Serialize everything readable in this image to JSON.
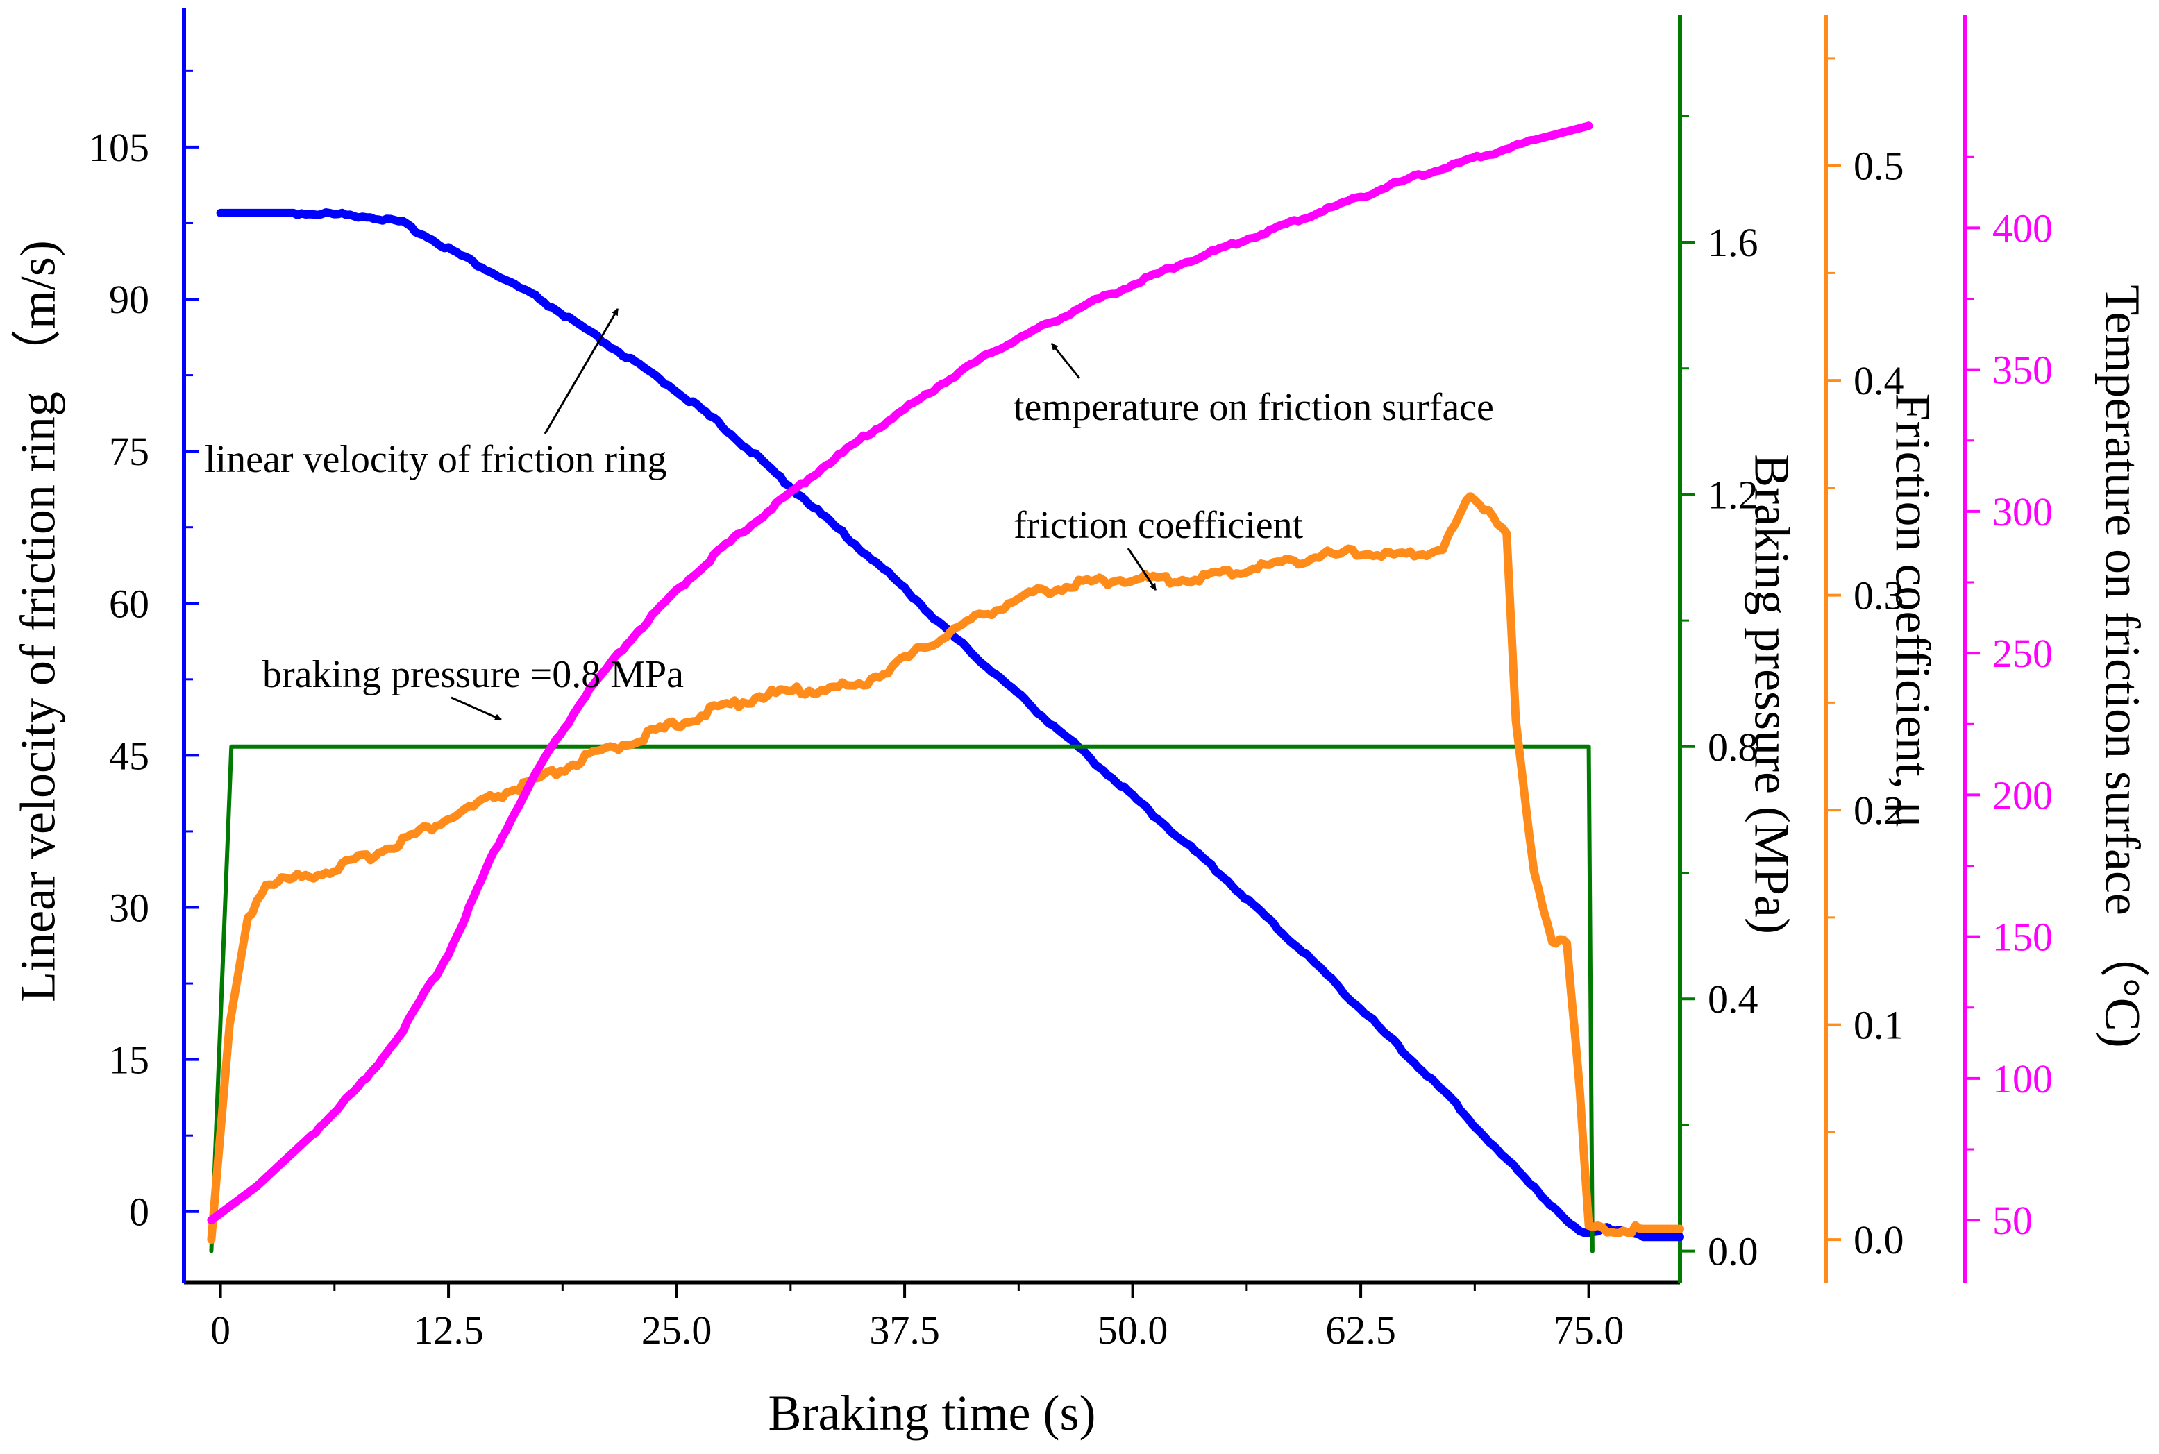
{
  "chart_data": {
    "type": "line",
    "xlabel": "Braking time (s)",
    "x_ticks": [
      "0",
      "12.5",
      "25.0",
      "37.5",
      "50.0",
      "62.5",
      "75.0"
    ],
    "xlim": [
      -2,
      80
    ],
    "axes": [
      {
        "id": "velocity",
        "label": "Linear velocity of friction ring （m/s)",
        "color": "#0000ff",
        "side": "left",
        "ylim": [
          -7,
          118
        ],
        "ticks": [
          0,
          15,
          30,
          45,
          60,
          75,
          90,
          105
        ]
      },
      {
        "id": "pressure",
        "label": "Braking pressure  (MPa)",
        "color": "#007a00",
        "side": "right",
        "ylim": [
          -0.05,
          1.96
        ],
        "ticks": [
          "0.0",
          "0.4",
          "0.8",
          "1.2",
          "1.6"
        ]
      },
      {
        "id": "friction",
        "label": "Friction coefficient, μ",
        "color": "#ff8c1a",
        "side": "right",
        "ylim": [
          -0.02,
          0.57
        ],
        "ticks": [
          "0.0",
          "0.1",
          "0.2",
          "0.3",
          "0.4",
          "0.5"
        ]
      },
      {
        "id": "temperature",
        "label": "Temperature on friction surface （°C)",
        "color": "#ff00ff",
        "side": "right",
        "ylim": [
          28,
          475
        ],
        "ticks": [
          50,
          100,
          150,
          200,
          250,
          300,
          350,
          400
        ]
      }
    ],
    "series": [
      {
        "name": "linear velocity of friction ring",
        "axis": "velocity",
        "color": "#0000ff",
        "x": [
          0,
          2,
          4,
          6,
          8,
          10,
          12.5,
          15,
          17.5,
          20,
          22.5,
          25,
          27.5,
          30,
          32.5,
          35,
          37.5,
          40,
          42.5,
          45,
          47.5,
          50,
          52.5,
          55,
          57.5,
          60,
          62.5,
          65,
          67.5,
          70,
          72,
          73.5,
          74.5,
          75,
          76,
          78,
          80
        ],
        "y": [
          98.5,
          98.5,
          98.5,
          98.4,
          98.2,
          97.5,
          95,
          92.5,
          90,
          87,
          84,
          81,
          77.5,
          73.5,
          69.5,
          65.5,
          61.5,
          57,
          53,
          49,
          45,
          41,
          37,
          33,
          28.7,
          24.5,
          20,
          15.5,
          11,
          6,
          2.5,
          -0.5,
          -2,
          -2,
          -1.5,
          -2.5,
          -2.5
        ]
      },
      {
        "name": "braking pressure",
        "axis": "pressure",
        "color": "#007a00",
        "x": [
          -0.5,
          0.6,
          75,
          75.2
        ],
        "y": [
          0.0,
          0.8,
          0.8,
          0.0
        ]
      },
      {
        "name": "friction coefficient",
        "axis": "friction",
        "color": "#ff8c1a",
        "x": [
          -0.5,
          0.5,
          1.5,
          2.5,
          4,
          6,
          8,
          10,
          12.5,
          15,
          17.5,
          20,
          22.5,
          25,
          27.5,
          30,
          32.5,
          35,
          37.5,
          40,
          42.5,
          45,
          47.5,
          50,
          52.5,
          55,
          57.5,
          60,
          62.5,
          65,
          67,
          68.5,
          69.5,
          70.5,
          71,
          72,
          73,
          73.8,
          74.5,
          75,
          76,
          78,
          80
        ],
        "y": [
          0.0,
          0.1,
          0.15,
          0.166,
          0.168,
          0.172,
          0.178,
          0.186,
          0.196,
          0.206,
          0.214,
          0.224,
          0.232,
          0.24,
          0.248,
          0.254,
          0.256,
          0.258,
          0.27,
          0.283,
          0.294,
          0.302,
          0.306,
          0.308,
          0.307,
          0.31,
          0.314,
          0.318,
          0.32,
          0.318,
          0.322,
          0.346,
          0.34,
          0.33,
          0.24,
          0.17,
          0.14,
          0.14,
          0.07,
          0.005,
          0.005,
          0.005,
          0.005
        ]
      },
      {
        "name": "temperature on friction surface",
        "axis": "temperature",
        "color": "#ff00ff",
        "x": [
          -0.5,
          2,
          5,
          8,
          10,
          12.5,
          15,
          17.5,
          20,
          22.5,
          25,
          27.5,
          30,
          32.5,
          35,
          37.5,
          40,
          42.5,
          45,
          47.5,
          50,
          52.5,
          55,
          57.5,
          60,
          62.5,
          65,
          67.5,
          70,
          72,
          75
        ],
        "y": [
          50,
          62,
          80,
          100,
          117,
          144,
          180,
          210,
          235,
          255,
          272,
          287,
          300,
          313,
          325,
          336,
          347,
          357,
          365,
          373,
          380,
          387,
          393,
          399,
          405,
          411,
          417,
          422,
          427,
          431,
          436
        ]
      }
    ],
    "annotations": [
      {
        "text": "linear velocity of friction ring"
      },
      {
        "text": "temperature on friction surface"
      },
      {
        "text": "friction coefficient"
      },
      {
        "text": "braking pressure =0.8 MPa"
      }
    ]
  }
}
